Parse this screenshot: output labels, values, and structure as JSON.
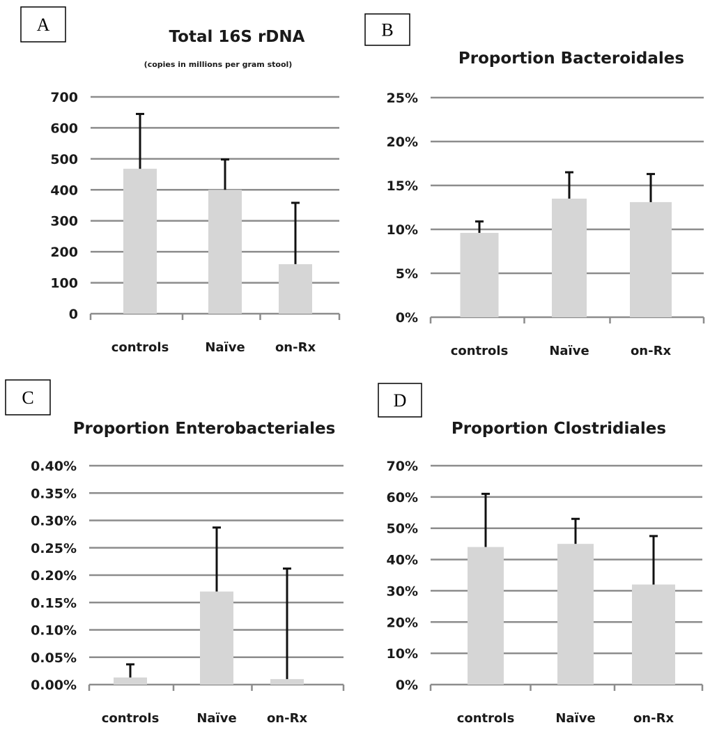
{
  "chart_data": [
    {
      "panel": "A",
      "type": "bar",
      "title": "Total 16S rDNA",
      "subtitle": "(copies in millions per gram stool)",
      "categories": [
        "controls",
        "Naïve",
        "on-Rx"
      ],
      "values": [
        468,
        400,
        160
      ],
      "error_upper": [
        645,
        498,
        358
      ],
      "ylim": [
        0,
        700
      ],
      "yticks": [
        0,
        100,
        200,
        300,
        400,
        500,
        600,
        700
      ],
      "ytick_labels": [
        "0",
        "100",
        "200",
        "300",
        "400",
        "500",
        "600",
        "700"
      ],
      "grid": true
    },
    {
      "panel": "B",
      "type": "bar",
      "title": "Proportion Bacteroidales",
      "subtitle": "",
      "categories": [
        "controls",
        "Naïve",
        "on-Rx"
      ],
      "values": [
        9.6,
        13.5,
        13.1
      ],
      "error_upper": [
        10.9,
        16.5,
        16.3
      ],
      "ylim": [
        0,
        25
      ],
      "yticks": [
        0,
        5,
        10,
        15,
        20,
        25
      ],
      "ytick_labels": [
        "0%",
        "5%",
        "10%",
        "15%",
        "20%",
        "25%"
      ],
      "grid": true
    },
    {
      "panel": "C",
      "type": "bar",
      "title": "Proportion Enterobacteriales",
      "subtitle": "",
      "categories": [
        "controls",
        "Naïve",
        "on-Rx"
      ],
      "values": [
        0.013,
        0.17,
        0.01
      ],
      "error_upper": [
        0.037,
        0.287,
        0.212
      ],
      "ylim": [
        0,
        0.4
      ],
      "yticks": [
        0,
        0.05,
        0.1,
        0.15,
        0.2,
        0.25,
        0.3,
        0.35,
        0.4
      ],
      "ytick_labels": [
        "0.00%",
        "0.05%",
        "0.10%",
        "0.15%",
        "0.20%",
        "0.25%",
        "0.30%",
        "0.35%",
        "0.40%"
      ],
      "grid": true
    },
    {
      "panel": "D",
      "type": "bar",
      "title": "Proportion Clostridiales",
      "subtitle": "",
      "categories": [
        "controls",
        "Naïve",
        "on-Rx"
      ],
      "values": [
        44,
        45,
        32
      ],
      "error_upper": [
        61,
        53,
        47.5
      ],
      "ylim": [
        0,
        70
      ],
      "yticks": [
        0,
        10,
        20,
        30,
        40,
        50,
        60,
        70
      ],
      "ytick_labels": [
        "0%",
        "10%",
        "20%",
        "30%",
        "40%",
        "50%",
        "60%",
        "70%"
      ],
      "grid": true
    }
  ]
}
